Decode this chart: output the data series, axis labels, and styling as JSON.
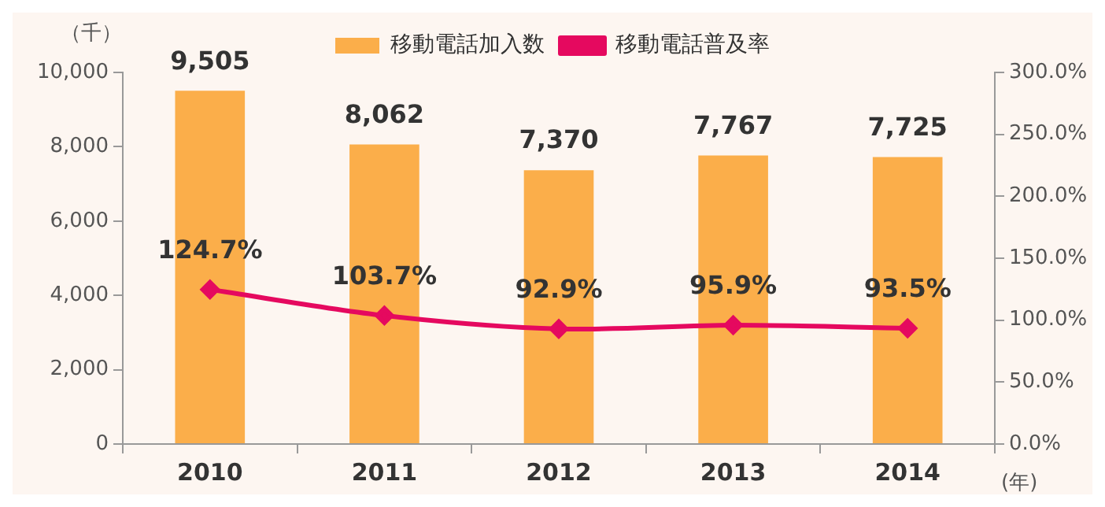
{
  "chart_data": {
    "type": "bar",
    "ylabel": "（千）",
    "xlabel": "(年)",
    "categories": [
      "2010",
      "2011",
      "2012",
      "2013",
      "2014"
    ],
    "series": [
      {
        "name": "移動電話加入数",
        "color": "#fbae4a",
        "values": [
          9505,
          8062,
          7370,
          7767,
          7725
        ],
        "value_labels": [
          "9,505",
          "8,062",
          "7,370",
          "7,767",
          "7,725"
        ]
      },
      {
        "name": "移動電話普及率",
        "type": "line",
        "axis": "y2",
        "color": "#e5095f",
        "marker": "diamond",
        "values": [
          124.7,
          103.7,
          92.9,
          95.9,
          93.5
        ],
        "value_labels": [
          "124.7%",
          "103.7%",
          "92.9%",
          "95.9%",
          "93.5%"
        ]
      }
    ],
    "ylim": [
      0,
      10000
    ],
    "yticks": [
      {
        "value": 0,
        "label": "0"
      },
      {
        "value": 2000,
        "label": "2,000"
      },
      {
        "value": 4000,
        "label": "4,000"
      },
      {
        "value": 6000,
        "label": "6,000"
      },
      {
        "value": 8000,
        "label": "8,000"
      },
      {
        "value": 10000,
        "label": "10,000"
      }
    ],
    "y2lim": [
      0,
      300
    ],
    "y2ticks": [
      {
        "value": 0,
        "label": "0.0%"
      },
      {
        "value": 50,
        "label": "50.0%"
      },
      {
        "value": 100,
        "label": "100.0%"
      },
      {
        "value": 150,
        "label": "150.0%"
      },
      {
        "value": 200,
        "label": "200.0%"
      },
      {
        "value": 250,
        "label": "250.0%"
      },
      {
        "value": 300,
        "label": "300.0%"
      }
    ],
    "grid": false,
    "legend": "top"
  }
}
